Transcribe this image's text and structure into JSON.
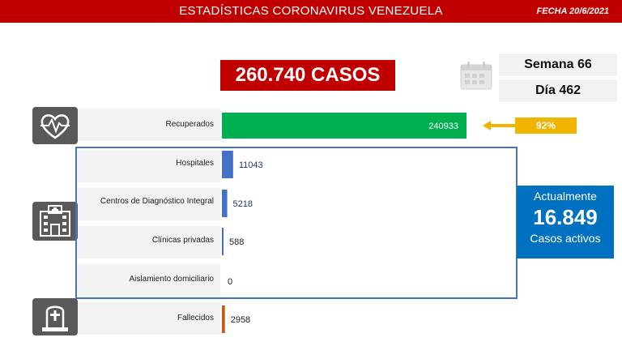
{
  "header": {
    "title": "ESTADÍSTICAS CORONAVIRUS VENEZUELA",
    "date": "FECHA 20/6/2021"
  },
  "total_cases": "260.740 CASOS",
  "week": "Semana 66",
  "day": "Día 462",
  "recovered_pct": "92%",
  "active": {
    "line1": "Actualmente",
    "value": "16.849",
    "line2": "Casos activos"
  },
  "icons": [
    "heart-pulse-icon",
    "hospital-icon",
    "tombstone-icon",
    "calendar-icon"
  ],
  "chart_data": {
    "type": "bar",
    "orientation": "horizontal",
    "categories": [
      "Recuperados",
      "Hospitales",
      "Centros de Diagnóstico Integral",
      "Clínicas privadas",
      "Aislamiento domiciliario",
      "Fallecidos"
    ],
    "values": [
      240933,
      11043,
      5218,
      588,
      0,
      2958
    ],
    "value_labels": [
      "240933",
      "11043",
      "5218",
      "588",
      "0",
      "2958"
    ],
    "bar_colors": [
      "#00b050",
      "#4472c4",
      "#4472c4",
      "#4472c4",
      "#4472c4",
      "#c55a11"
    ],
    "label_colors": [
      "#ffffff",
      "#1f3864",
      "#1f3864",
      "#222222",
      "#222222",
      "#222222"
    ]
  },
  "colors": {
    "header_red": "#c00000",
    "recovered_green": "#00b050",
    "active_blue": "#0070c0",
    "frame_blue": "#4472c4",
    "pct_gold": "#f0b400",
    "icon_gray": "#595959"
  }
}
